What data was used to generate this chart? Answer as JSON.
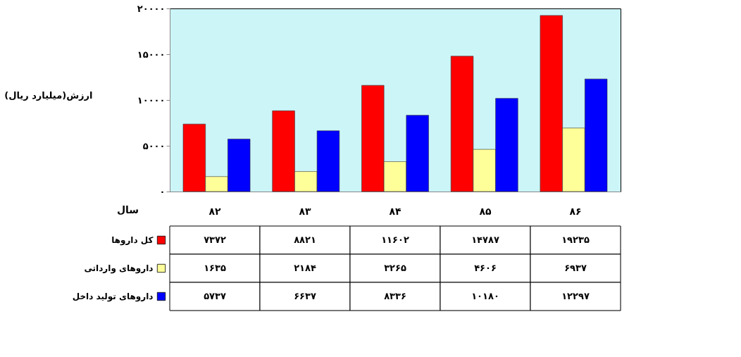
{
  "chart_data": {
    "type": "bar",
    "ylabel": "ارزش(میلیارد ریال)",
    "xlabel": "سال",
    "categories": [
      "۸۲",
      "۸۳",
      "۸۴",
      "۸۵",
      "۸۶"
    ],
    "series": [
      {
        "name": "کل داروها",
        "color": "#ff0000",
        "values": [
          7372,
          8821,
          11602,
          14787,
          19235
        ],
        "value_labels": [
          "۷۳۷۲",
          "۸۸۲۱",
          "۱۱۶۰۲",
          "۱۴۷۸۷",
          "۱۹۲۳۵"
        ]
      },
      {
        "name": "داروهای وارداتی",
        "color": "#ffff99",
        "values": [
          1635,
          2184,
          3265,
          4606,
          6937
        ],
        "value_labels": [
          "۱۶۳۵",
          "۲۱۸۴",
          "۳۲۶۵",
          "۴۶۰۶",
          "۶۹۳۷"
        ]
      },
      {
        "name": "داروهای تولید داخل",
        "color": "#0000ff",
        "values": [
          5737,
          6637,
          8336,
          10180,
          12297
        ],
        "value_labels": [
          "۵۷۳۷",
          "۶۶۳۷",
          "۸۳۳۶",
          "۱۰۱۸۰",
          "۱۲۲۹۷"
        ]
      }
    ],
    "ylim": [
      0,
      20000
    ],
    "yticks": [
      {
        "value": 0,
        "label": "۰"
      },
      {
        "value": 5000,
        "label": "۵۰۰۰"
      },
      {
        "value": 10000,
        "label": "۱۰۰۰۰"
      },
      {
        "value": 15000,
        "label": "۱۵۰۰۰"
      },
      {
        "value": 20000,
        "label": "۲۰۰۰۰"
      }
    ],
    "grid": false,
    "legend": "bottom"
  }
}
